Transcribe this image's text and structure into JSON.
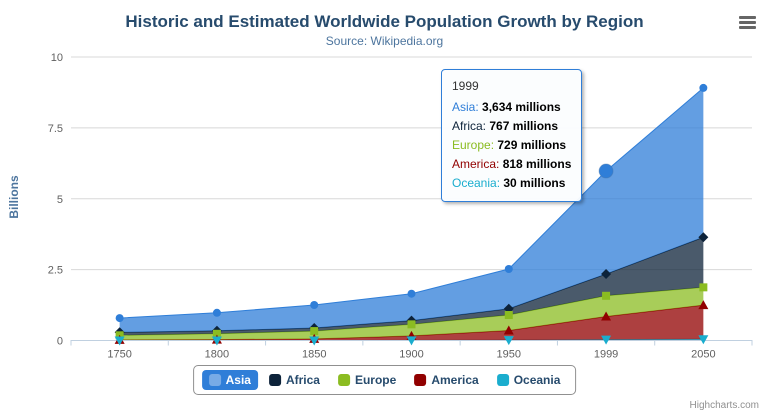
{
  "header": {
    "title": "Historic and Estimated Worldwide Population Growth by Region",
    "subtitle": "Source: Wikipedia.org"
  },
  "toolbar": {
    "menu_icon": "hamburger-menu"
  },
  "credits": {
    "label": "Highcharts.com"
  },
  "chart_data": {
    "type": "area",
    "stacking": "normal",
    "categories": [
      "1750",
      "1800",
      "1850",
      "1900",
      "1950",
      "1999",
      "2050"
    ],
    "series": [
      {
        "name": "Asia",
        "color": "#2f7ed8",
        "marker": "circle",
        "values": [
          502,
          635,
          809,
          947,
          1402,
          3634,
          5268
        ]
      },
      {
        "name": "Africa",
        "color": "#0d233a",
        "marker": "diamond",
        "values": [
          106,
          107,
          111,
          133,
          221,
          767,
          1766
        ]
      },
      {
        "name": "Europe",
        "color": "#8bbc21",
        "marker": "square",
        "values": [
          163,
          203,
          276,
          408,
          547,
          729,
          628
        ]
      },
      {
        "name": "America",
        "color": "#910000",
        "marker": "triangle",
        "values": [
          18,
          31,
          54,
          156,
          339,
          818,
          1201
        ]
      },
      {
        "name": "Oceania",
        "color": "#1aadce",
        "marker": "triangle-down",
        "values": [
          2,
          2,
          2,
          6,
          13,
          30,
          46
        ]
      }
    ],
    "ylabel": "Billions",
    "xlabel": "",
    "yticks": [
      0,
      2.5,
      5,
      7.5,
      10
    ],
    "ylim": [
      0,
      10
    ],
    "unit_divisor": 1000,
    "value_suffix": " millions",
    "grid": true,
    "legend_position": "bottom",
    "hover": {
      "category_index": 5,
      "series_index": 0
    },
    "tooltip": {
      "header": "1999",
      "category_index": 5
    }
  }
}
